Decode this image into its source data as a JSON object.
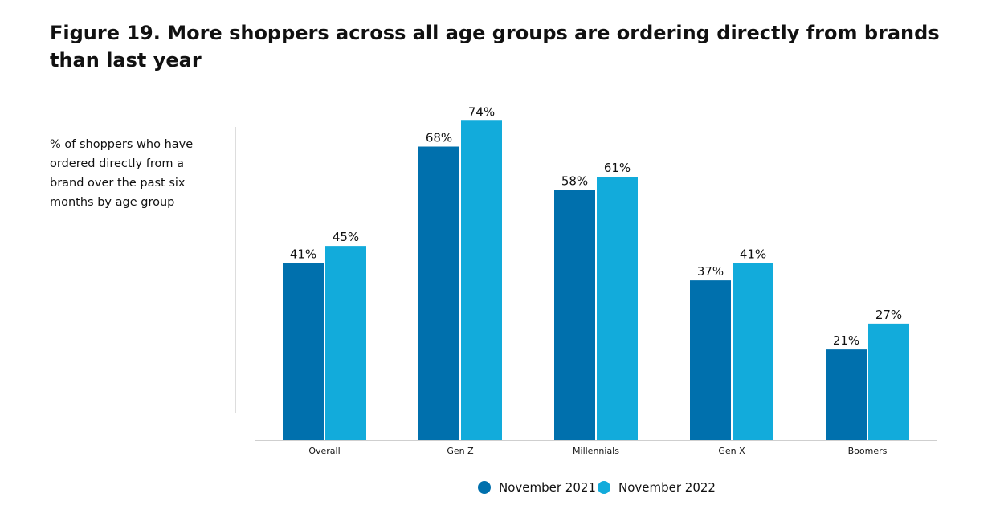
{
  "header": {
    "title": "Figure 19. More shoppers across all age groups are ordering directly from brands than last year",
    "subtitle": "% of shoppers who have ordered directly from a brand over the past six months by age group"
  },
  "legend": {
    "items": [
      {
        "label": "November 2021",
        "color": "#0070ad"
      },
      {
        "label": "November 2022",
        "color": "#12abdb"
      }
    ]
  },
  "chart_data": {
    "type": "bar",
    "categories": [
      "Overall",
      "Gen Z",
      "Millennials",
      "Gen X",
      "Boomers"
    ],
    "series": [
      {
        "name": "November 2021",
        "color": "#0070ad",
        "values": [
          41,
          68,
          58,
          37,
          21
        ],
        "labels": [
          "41%",
          "68%",
          "58%",
          "37%",
          "21%"
        ]
      },
      {
        "name": "November 2022",
        "color": "#12abdb",
        "values": [
          45,
          74,
          61,
          41,
          27
        ],
        "labels": [
          "45%",
          "74%",
          "61%",
          "41%",
          "27%"
        ]
      }
    ],
    "ylim": [
      0,
      80
    ],
    "grid": false,
    "legend_position": "bottom-center"
  }
}
